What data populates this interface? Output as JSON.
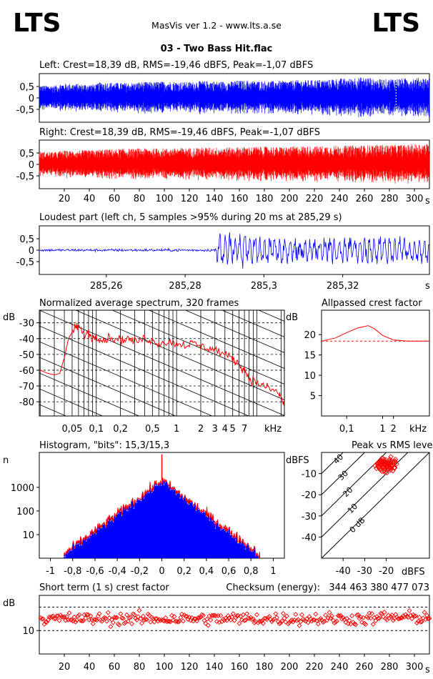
{
  "header": {
    "logo_left": "LTS",
    "logo_right": "LTS",
    "app_title": "MasVis ver 1.2 - www.lts.a.se",
    "file_title": "03 - Two Bass Hit.flac"
  },
  "colors": {
    "left_channel": "#0000ff",
    "right_channel": "#ff0000",
    "spectrum": "#ff0000",
    "grid": "#000000",
    "background": "#ffffff"
  },
  "chart_data": [
    {
      "id": "left",
      "type": "area",
      "title": "Left: Crest=18,39 dB, RMS=-19,46 dBFS, Peak=-1,07 dBFS",
      "y_ticks": [
        {
          "v": 0.5,
          "label": "0,5"
        },
        {
          "v": 0,
          "label": "0"
        },
        {
          "v": -0.5,
          "label": "-0,5"
        }
      ],
      "ylim": [
        -1,
        1
      ],
      "xlim": [
        0,
        312
      ],
      "amplitude_envelope": [
        0.55,
        0.62,
        0.6,
        0.68,
        0.66,
        0.7,
        0.72,
        0.7,
        0.74,
        0.72,
        0.76,
        0.74,
        0.75,
        0.78,
        0.8,
        0.85,
        0.9,
        0.82,
        0.86,
        0.88
      ],
      "series": [
        {
          "name": "Left",
          "color": "#0000ff"
        }
      ]
    },
    {
      "id": "right",
      "type": "area",
      "title": "Right: Crest=18,39 dB, RMS=-19,46 dBFS, Peak=-1,07 dBFS",
      "y_ticks": [
        {
          "v": 0.5,
          "label": "0,5"
        },
        {
          "v": 0,
          "label": "0"
        },
        {
          "v": -0.5,
          "label": "-0,5"
        }
      ],
      "ylim": [
        -1,
        1
      ],
      "xlim": [
        0,
        312
      ],
      "x_ticks": [
        "20",
        "40",
        "60",
        "80",
        "100",
        "120",
        "140",
        "160",
        "180",
        "200",
        "220",
        "240",
        "260",
        "280",
        "300"
      ],
      "x_tick_values": [
        20,
        40,
        60,
        80,
        100,
        120,
        140,
        160,
        180,
        200,
        220,
        240,
        260,
        280,
        300
      ],
      "x_unit": "s",
      "amplitude_envelope": [
        0.55,
        0.6,
        0.62,
        0.66,
        0.68,
        0.7,
        0.7,
        0.72,
        0.74,
        0.74,
        0.76,
        0.78,
        0.76,
        0.8,
        0.8,
        0.82,
        0.84,
        0.86,
        0.86,
        0.9
      ],
      "series": [
        {
          "name": "Right",
          "color": "#ff0000"
        }
      ]
    },
    {
      "id": "loudest",
      "type": "line",
      "title": "Loudest part (left  ch, 5 samples >95% during 20 ms at 285,29 s)",
      "y_ticks": [
        {
          "v": 0.5,
          "label": "0,5"
        },
        {
          "v": 0,
          "label": "0"
        },
        {
          "v": -0.5,
          "label": "-0,5"
        }
      ],
      "ylim": [
        -1,
        1
      ],
      "xlim": [
        285.243,
        285.342
      ],
      "x_ticks": [
        "285,26",
        "285,28",
        "285,3",
        "285,32"
      ],
      "x_tick_values": [
        285.26,
        285.28,
        285.3,
        285.32
      ],
      "x_unit": "s",
      "quiet_level": 0.05,
      "onset_time": 285.288,
      "loud_level": 0.75
    },
    {
      "id": "spectrum",
      "type": "line",
      "title": "Normalized average spectrum, 320 frames",
      "y_unit": "dB",
      "x_unit": "kHz",
      "y_ticks": [
        -30,
        -40,
        -50,
        -60,
        -70,
        -80
      ],
      "ylim": [
        -89,
        -22
      ],
      "x_ticks": [
        {
          "v": 0.05,
          "label": "0,05"
        },
        {
          "v": 0.1,
          "label": "0,1"
        },
        {
          "v": 0.2,
          "label": "0,2"
        },
        {
          "v": 0.5,
          "label": "0,5"
        },
        {
          "v": 1,
          "label": "1"
        },
        {
          "v": 2,
          "label": "2"
        },
        {
          "v": 3,
          "label": "3"
        },
        {
          "v": 4,
          "label": "4"
        },
        {
          "v": 5,
          "label": "5"
        },
        {
          "v": 7,
          "label": "7"
        }
      ],
      "xlim": [
        0.0195,
        22
      ],
      "points": [
        [
          0.02,
          -60
        ],
        [
          0.025,
          -62
        ],
        [
          0.03,
          -63
        ],
        [
          0.035,
          -62
        ],
        [
          0.04,
          -52
        ],
        [
          0.045,
          -40
        ],
        [
          0.05,
          -36
        ],
        [
          0.055,
          -33
        ],
        [
          0.06,
          -32
        ],
        [
          0.07,
          -38
        ],
        [
          0.08,
          -36
        ],
        [
          0.09,
          -40
        ],
        [
          0.1,
          -38
        ],
        [
          0.12,
          -41
        ],
        [
          0.15,
          -39
        ],
        [
          0.2,
          -41
        ],
        [
          0.25,
          -40
        ],
        [
          0.3,
          -42
        ],
        [
          0.4,
          -40
        ],
        [
          0.5,
          -41
        ],
        [
          0.6,
          -43
        ],
        [
          0.8,
          -42
        ],
        [
          1.0,
          -43
        ],
        [
          1.3,
          -44
        ],
        [
          1.6,
          -43
        ],
        [
          2.0,
          -45
        ],
        [
          2.5,
          -46
        ],
        [
          3.0,
          -47
        ],
        [
          4.0,
          -50
        ],
        [
          5.0,
          -53
        ],
        [
          6.0,
          -56
        ],
        [
          7.0,
          -60
        ],
        [
          8.0,
          -65
        ],
        [
          10.0,
          -68
        ],
        [
          12.0,
          -70
        ],
        [
          15.0,
          -72
        ],
        [
          18.0,
          -74
        ],
        [
          20.0,
          -77
        ],
        [
          22.0,
          -83
        ]
      ]
    },
    {
      "id": "crest",
      "type": "line",
      "title": "Allpassed crest factor",
      "y_unit": "dB",
      "x_unit": "kHz",
      "y_ticks": [
        20,
        15,
        10,
        5
      ],
      "ylim": [
        0,
        26
      ],
      "x_ticks": [
        {
          "v": 0.1,
          "label": "0,1"
        },
        {
          "v": 1,
          "label": "1"
        },
        {
          "v": 2,
          "label": "2"
        }
      ],
      "xlim": [
        0.02,
        20
      ],
      "reference_db": 18.4,
      "points": [
        [
          0.02,
          18.4
        ],
        [
          0.05,
          19.2
        ],
        [
          0.1,
          20.5
        ],
        [
          0.2,
          21.6
        ],
        [
          0.4,
          22.2
        ],
        [
          0.6,
          21.4
        ],
        [
          1.0,
          19.8
        ],
        [
          2.0,
          18.7
        ],
        [
          5.0,
          18.4
        ],
        [
          20.0,
          18.4
        ]
      ]
    },
    {
      "id": "histogram",
      "type": "line",
      "title": "Histogram, \"bits\": 15,3/15,3",
      "y_unit": "n",
      "y_ticks": [
        {
          "v": 10,
          "label": "10"
        },
        {
          "v": 100,
          "label": "100"
        },
        {
          "v": 1000,
          "label": "1000"
        }
      ],
      "ylim_log": [
        1,
        30000
      ],
      "x_ticks": [
        {
          "v": -1,
          "label": "-1"
        },
        {
          "v": -0.8,
          "label": "-0,8"
        },
        {
          "v": -0.6,
          "label": "-0,6"
        },
        {
          "v": -0.4,
          "label": "-0,4"
        },
        {
          "v": -0.2,
          "label": "-0,2"
        },
        {
          "v": 0,
          "label": "0"
        },
        {
          "v": 0.2,
          "label": "0,2"
        },
        {
          "v": 0.4,
          "label": "0,4"
        },
        {
          "v": 0.6,
          "label": "0,6"
        },
        {
          "v": 0.8,
          "label": "0,8"
        },
        {
          "v": 1,
          "label": "1"
        }
      ],
      "xlim": [
        -1.1,
        1.1
      ],
      "peak_count": 2000,
      "center_spike": 25000,
      "decay_per_unit": 8.2,
      "range": [
        -0.88,
        0.88
      ]
    },
    {
      "id": "peak_rms",
      "type": "scatter",
      "title": "Peak vs RMS level",
      "y_unit": "dBFS",
      "x_unit": "dBFS",
      "y_ticks": [
        -10,
        -20,
        -30,
        -40
      ],
      "x_ticks": [
        -40,
        -30,
        -20
      ],
      "xlim": [
        -50,
        0
      ],
      "ylim": [
        -50,
        0
      ],
      "diagonals": [
        {
          "crest": 40,
          "label": "40"
        },
        {
          "crest": 30,
          "label": "30"
        },
        {
          "crest": 20,
          "label": "20"
        },
        {
          "crest": 10,
          "label": "10"
        },
        {
          "crest": 0,
          "label": "0 dB"
        }
      ],
      "center": [
        -20,
        -6
      ],
      "spread": [
        4,
        3
      ],
      "count": 80
    },
    {
      "id": "shortterm",
      "type": "scatter",
      "title": "Short term (1 s) crest factor",
      "checksum": "Checksum (energy):   344 463 380 477 073",
      "y_unit": "dB",
      "y_ticks": [
        {
          "v": 10,
          "label": "10"
        }
      ],
      "ylim": [
        0,
        25
      ],
      "dashed_levels": [
        10,
        20
      ],
      "xlim": [
        0,
        312
      ],
      "x_ticks": [
        "20",
        "40",
        "60",
        "80",
        "100",
        "120",
        "140",
        "160",
        "180",
        "200",
        "220",
        "240",
        "260",
        "280",
        "300"
      ],
      "x_tick_values": [
        20,
        40,
        60,
        80,
        100,
        120,
        140,
        160,
        180,
        200,
        220,
        240,
        260,
        280,
        300
      ],
      "x_unit": "s",
      "base": 15,
      "spread": 2.4,
      "count": 312
    }
  ]
}
